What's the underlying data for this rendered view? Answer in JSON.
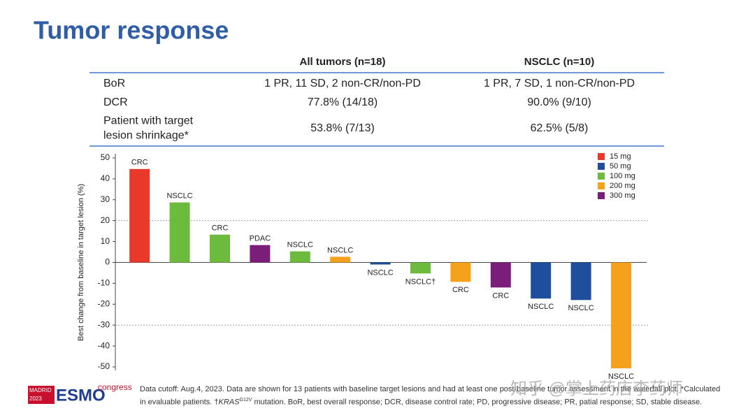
{
  "header": {
    "title": "Tumor response"
  },
  "table": {
    "columns": [
      "All tumors (n=18)",
      "NSCLC (n=10)"
    ],
    "rows": [
      [
        [
          "BoR"
        ],
        "1 PR, 11 SD, 2 non-CR/non-PD",
        "1 PR, 7 SD, 1 non-CR/non-PD"
      ],
      [
        [
          "DCR"
        ],
        "77.8% (14/18)",
        "90.0% (9/10)"
      ],
      [
        [
          "Patient with target",
          "lesion shrinkage*"
        ],
        "53.8% (7/13)",
        "62.5% (5/8)"
      ]
    ]
  },
  "chart_data": {
    "type": "bar",
    "y_label": "Best change from baseline in target lesion (%)",
    "categories": [
      "CRC",
      "NSCLC",
      "CRC",
      "PDAC",
      "NSCLC",
      "NSCLC",
      "NSCLC",
      "NSCLC†",
      "CRC",
      "CRC",
      "NSCLC",
      "NSCLC",
      "NSCLC"
    ],
    "values": [
      44.7,
      28.7,
      13.3,
      8.3,
      5.3,
      2.7,
      -1,
      -5.3,
      -9.3,
      -12,
      -17.3,
      -18,
      -50.7
    ],
    "colors": [
      "#e8392b",
      "#6cbb3c",
      "#6cbb3c",
      "#7b1e7a",
      "#6cbb3c",
      "#f5a11c",
      "#1f4e9c",
      "#6cbb3c",
      "#f5a11c",
      "#7b1e7a",
      "#1f4e9c",
      "#1f4e9c",
      "#f5a11c"
    ],
    "legend": [
      {
        "name": "15 mg",
        "color": "#e8392b"
      },
      {
        "name": "50 mg",
        "color": "#1f4e9c"
      },
      {
        "name": "100 mg",
        "color": "#6cbb3c"
      },
      {
        "name": "200 mg",
        "color": "#f5a11c"
      },
      {
        "name": "300 mg",
        "color": "#7b1e7a"
      }
    ],
    "legend_position": "upper right",
    "ylim": [
      -51,
      51
    ],
    "yticks": [
      -50,
      -40,
      -30,
      -20,
      -10,
      0,
      10,
      20,
      30,
      40,
      50
    ],
    "reference_lines": [
      20,
      -30
    ]
  },
  "footnote": {
    "before": "Data cutoff: Aug.4, 2023. Data are shown for 13 patients with baseline target lesions and had at least one post-baseline tumor assessment in the waterfall plot. *Calculated in evaluable patients. †",
    "italic": "KRAS",
    "sup": "G12V",
    "after": " mutation. BoR, best overall response; DCR, disease control rate; PD, progressive disease; PR, patial response; SD, stable disease."
  },
  "logo": {
    "city": "MADRID",
    "year": "2023",
    "brand": "ESMO",
    "event": "congress"
  },
  "watermark": "知乎 @掌上药店李药师"
}
